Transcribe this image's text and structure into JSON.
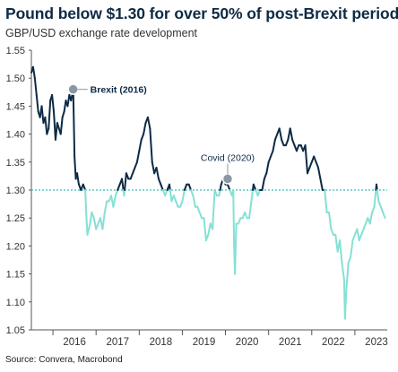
{
  "chart_data": {
    "type": "line",
    "title": "Pound below $1.30 for over 50% of post-Brexit period",
    "subtitle": "GBP/USD exchange rate development",
    "source": "Source: Convera, Macrobond",
    "xlabel": "",
    "ylabel": "",
    "ylim": [
      1.05,
      1.55
    ],
    "yticks": [
      "1.05",
      "1.10",
      "1.15",
      "1.20",
      "1.25",
      "1.30",
      "1.35",
      "1.40",
      "1.45",
      "1.50",
      "1.55"
    ],
    "xlim": [
      2015.5,
      2023.75
    ],
    "xticks": [
      "2016",
      "2017",
      "2018",
      "2019",
      "2020",
      "2021",
      "2022",
      "2023"
    ],
    "grid": false,
    "threshold": 1.3,
    "colors": {
      "above_threshold": "#0d2a45",
      "below_threshold": "#86e0d4",
      "threshold_line": "#3cbfb4",
      "title": "#0d2a45"
    },
    "annotations": [
      {
        "label": "Brexit (2016)",
        "x": 2016.47,
        "y": 1.48
      },
      {
        "label": "Covid (2020)",
        "x": 2020.05,
        "y": 1.32
      }
    ],
    "series": [
      {
        "x": [
          2015.5,
          2015.54,
          2015.58,
          2015.62,
          2015.66,
          2015.7,
          2015.74,
          2015.78,
          2015.82,
          2015.86,
          2015.9,
          2015.94,
          2015.98,
          2016.02,
          2016.06,
          2016.1,
          2016.14,
          2016.18,
          2016.22,
          2016.26,
          2016.3,
          2016.34,
          2016.38,
          2016.42,
          2016.47,
          2016.5,
          2016.53,
          2016.56,
          2016.6,
          2016.65,
          2016.7,
          2016.75,
          2016.77,
          2016.8,
          2016.83,
          2016.86,
          2016.9,
          2016.95,
          2017.0,
          2017.05,
          2017.1,
          2017.15,
          2017.2,
          2017.25,
          2017.3,
          2017.35,
          2017.4,
          2017.45,
          2017.5,
          2017.55,
          2017.6,
          2017.65,
          2017.7,
          2017.75,
          2017.8,
          2017.85,
          2017.9,
          2017.95,
          2018.0,
          2018.05,
          2018.1,
          2018.15,
          2018.2,
          2018.25,
          2018.3,
          2018.35,
          2018.4,
          2018.45,
          2018.5,
          2018.55,
          2018.6,
          2018.65,
          2018.7,
          2018.75,
          2018.8,
          2018.85,
          2018.9,
          2018.95,
          2019.0,
          2019.05,
          2019.1,
          2019.15,
          2019.2,
          2019.25,
          2019.3,
          2019.35,
          2019.4,
          2019.45,
          2019.5,
          2019.55,
          2019.6,
          2019.65,
          2019.7,
          2019.75,
          2019.8,
          2019.85,
          2019.9,
          2019.95,
          2020.0,
          2020.05,
          2020.1,
          2020.15,
          2020.18,
          2020.2,
          2020.22,
          2020.25,
          2020.3,
          2020.35,
          2020.4,
          2020.45,
          2020.5,
          2020.55,
          2020.6,
          2020.65,
          2020.7,
          2020.75,
          2020.8,
          2020.85,
          2020.9,
          2020.95,
          2021.0,
          2021.05,
          2021.1,
          2021.15,
          2021.2,
          2021.25,
          2021.3,
          2021.35,
          2021.4,
          2021.45,
          2021.5,
          2021.55,
          2021.6,
          2021.65,
          2021.7,
          2021.75,
          2021.8,
          2021.85,
          2021.9,
          2021.95,
          2022.0,
          2022.05,
          2022.1,
          2022.15,
          2022.2,
          2022.25,
          2022.3,
          2022.35,
          2022.4,
          2022.45,
          2022.5,
          2022.55,
          2022.6,
          2022.65,
          2022.7,
          2022.75,
          2022.77,
          2022.8,
          2022.85,
          2022.9,
          2022.95,
          2023.0,
          2023.05,
          2023.1,
          2023.15,
          2023.2,
          2023.25,
          2023.3,
          2023.35,
          2023.4,
          2023.45,
          2023.5,
          2023.55,
          2023.6,
          2023.65,
          2023.7
        ],
        "values": [
          1.51,
          1.52,
          1.5,
          1.47,
          1.44,
          1.43,
          1.45,
          1.42,
          1.43,
          1.4,
          1.41,
          1.46,
          1.47,
          1.44,
          1.39,
          1.42,
          1.41,
          1.4,
          1.43,
          1.44,
          1.46,
          1.45,
          1.47,
          1.46,
          1.48,
          1.36,
          1.32,
          1.33,
          1.31,
          1.3,
          1.31,
          1.3,
          1.26,
          1.22,
          1.23,
          1.24,
          1.26,
          1.25,
          1.23,
          1.24,
          1.25,
          1.23,
          1.26,
          1.28,
          1.28,
          1.29,
          1.27,
          1.29,
          1.3,
          1.31,
          1.32,
          1.29,
          1.33,
          1.32,
          1.32,
          1.33,
          1.34,
          1.35,
          1.37,
          1.39,
          1.4,
          1.42,
          1.43,
          1.41,
          1.35,
          1.33,
          1.34,
          1.32,
          1.31,
          1.3,
          1.29,
          1.3,
          1.31,
          1.28,
          1.29,
          1.28,
          1.27,
          1.27,
          1.28,
          1.3,
          1.31,
          1.31,
          1.3,
          1.29,
          1.27,
          1.27,
          1.26,
          1.25,
          1.25,
          1.21,
          1.22,
          1.24,
          1.23,
          1.3,
          1.29,
          1.29,
          1.31,
          1.32,
          1.31,
          1.31,
          1.3,
          1.29,
          1.3,
          1.2,
          1.15,
          1.24,
          1.24,
          1.25,
          1.25,
          1.26,
          1.25,
          1.25,
          1.28,
          1.31,
          1.3,
          1.29,
          1.3,
          1.3,
          1.32,
          1.33,
          1.35,
          1.36,
          1.37,
          1.39,
          1.4,
          1.41,
          1.39,
          1.38,
          1.38,
          1.39,
          1.41,
          1.39,
          1.38,
          1.37,
          1.38,
          1.38,
          1.37,
          1.38,
          1.33,
          1.34,
          1.35,
          1.36,
          1.35,
          1.34,
          1.32,
          1.3,
          1.3,
          1.26,
          1.26,
          1.23,
          1.22,
          1.22,
          1.19,
          1.21,
          1.17,
          1.14,
          1.07,
          1.12,
          1.17,
          1.18,
          1.21,
          1.22,
          1.23,
          1.21,
          1.22,
          1.23,
          1.24,
          1.25,
          1.24,
          1.26,
          1.27,
          1.31,
          1.28,
          1.27,
          1.26,
          1.25
        ]
      }
    ]
  }
}
